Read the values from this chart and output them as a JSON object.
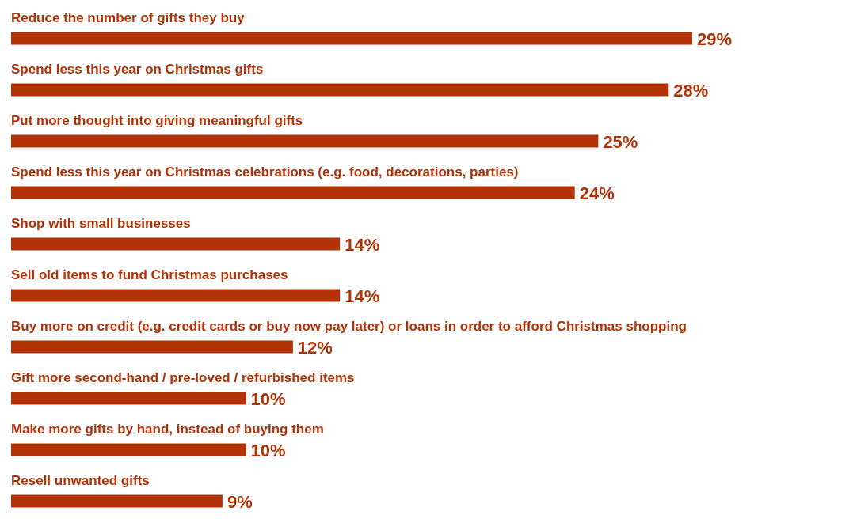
{
  "chart_data": {
    "type": "bar",
    "orientation": "horizontal",
    "categories": [
      "Reduce the number of gifts they buy",
      "Spend less this year on Christmas gifts",
      "Put more thought into giving meaningful gifts",
      "Spend less this year on Christmas celebrations (e.g. food, decorations, parties)",
      "Shop with small businesses",
      "Sell old items to fund Christmas purchases",
      "Buy more on credit (e.g. credit cards or buy now pay later) or loans in order to afford Christmas shopping",
      "Gift more second-hand / pre-loved / refurbished items",
      "Make more gifts by hand, instead of buying them",
      "Resell unwanted gifts"
    ],
    "values": [
      29,
      28,
      25,
      24,
      14,
      14,
      12,
      10,
      10,
      9
    ],
    "value_labels": [
      "29%",
      "28%",
      "25%",
      "24%",
      "14%",
      "14%",
      "12%",
      "10%",
      "10%",
      "9%"
    ],
    "color": "#b33206"
  }
}
